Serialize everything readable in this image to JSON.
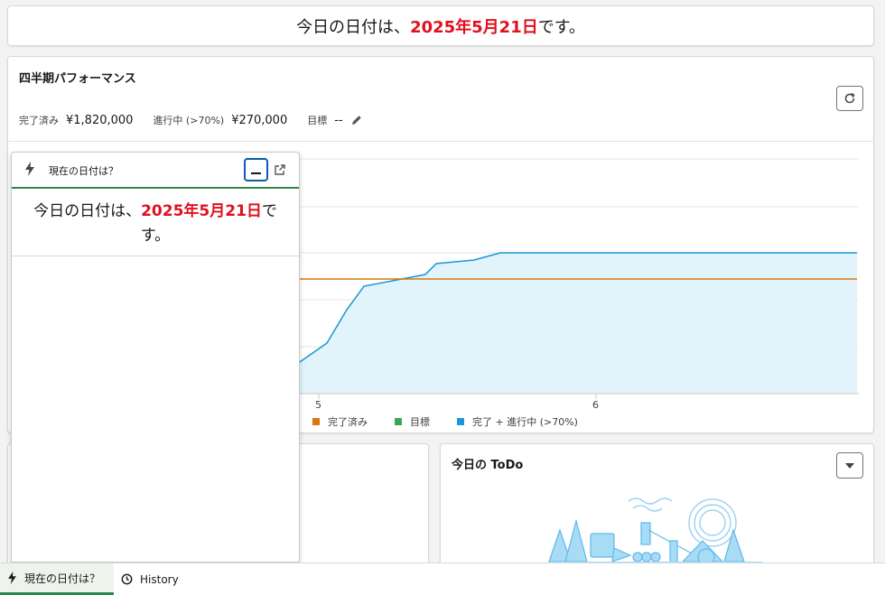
{
  "banner": {
    "prefix": "今日の日付は、",
    "date": "2025年5月21日",
    "suffix": "です。"
  },
  "performance": {
    "title": "四半期パフォーマンス",
    "metrics": [
      {
        "label": "完了済み",
        "value": "¥1,820,000"
      },
      {
        "label": "進行中 (>70%)",
        "value": "¥270,000"
      },
      {
        "label": "目標",
        "value": "--"
      }
    ],
    "icons": {
      "refresh": "refresh-icon",
      "edit": "pencil-icon"
    }
  },
  "chart_data": {
    "type": "area",
    "x_ticks": [
      "5",
      "6"
    ],
    "series": [
      {
        "name": "完了済み",
        "color": "#d8790a",
        "type": "line"
      },
      {
        "name": "目標",
        "color": "#3ba755",
        "type": "line"
      },
      {
        "name": "完了 + 進行中 (>70%)",
        "color": "#1b96d6",
        "type": "area"
      }
    ],
    "legend": "bottom",
    "grid": true
  },
  "todo": {
    "title": "今日の ToDo"
  },
  "utility_panel": {
    "title": "現在の日付は？",
    "content_prefix": "今日の日付は、",
    "content_date": "2025年5月21日",
    "content_suffix": "です。"
  },
  "utility_bar": {
    "items": [
      {
        "label": "現在の日付は？",
        "icon": "lightning-icon",
        "active": true
      },
      {
        "label": "History",
        "icon": "clock-icon",
        "active": false
      }
    ]
  },
  "colors": {
    "accent_red": "#e0101e",
    "active_green": "#2e844a",
    "focus_blue": "#0b5cab"
  }
}
